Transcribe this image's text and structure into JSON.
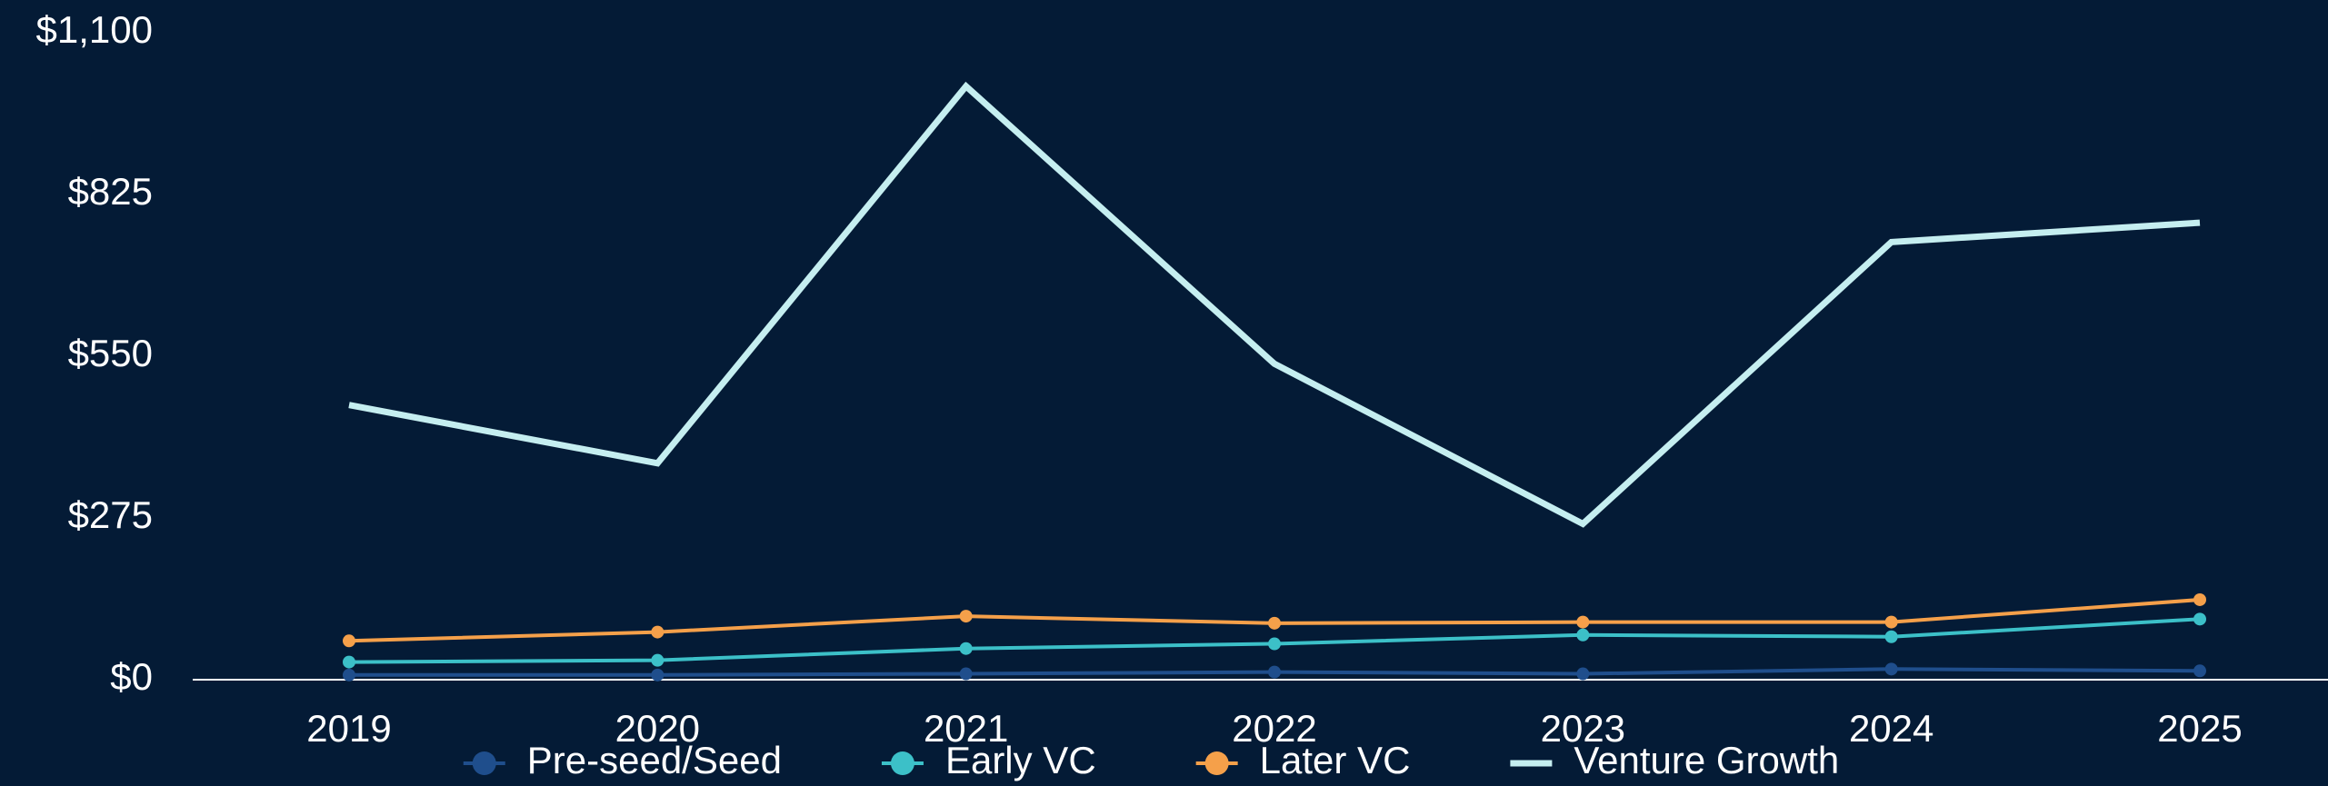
{
  "chart_data": {
    "type": "line",
    "categories": [
      "2019",
      "2020",
      "2021",
      "2022",
      "2023",
      "2024",
      "2025"
    ],
    "series": [
      {
        "name": "Pre-seed/Seed",
        "color": "#1f4e8c",
        "markers": true,
        "values": [
          8,
          8,
          10,
          13,
          10,
          18,
          15
        ]
      },
      {
        "name": "Early VC",
        "color": "#3cc0c8",
        "markers": true,
        "values": [
          30,
          33,
          53,
          61,
          76,
          73,
          103
        ]
      },
      {
        "name": "Later VC",
        "color": "#f5a04a",
        "markers": true,
        "values": [
          66,
          81,
          108,
          96,
          98,
          98,
          136
        ]
      },
      {
        "name": "Venture Growth",
        "color": "#c5eef0",
        "markers": false,
        "values": [
          467,
          368,
          1009,
          537,
          265,
          744,
          777
        ]
      }
    ],
    "ylim": [
      0,
      1100
    ],
    "yticks": [
      {
        "value": 0,
        "label": "$0"
      },
      {
        "value": 275,
        "label": "$275"
      },
      {
        "value": 550,
        "label": "$550"
      },
      {
        "value": 825,
        "label": "$825"
      },
      {
        "value": 1100,
        "label": "$1,100"
      }
    ],
    "grid": false,
    "legend": "bottom"
  }
}
